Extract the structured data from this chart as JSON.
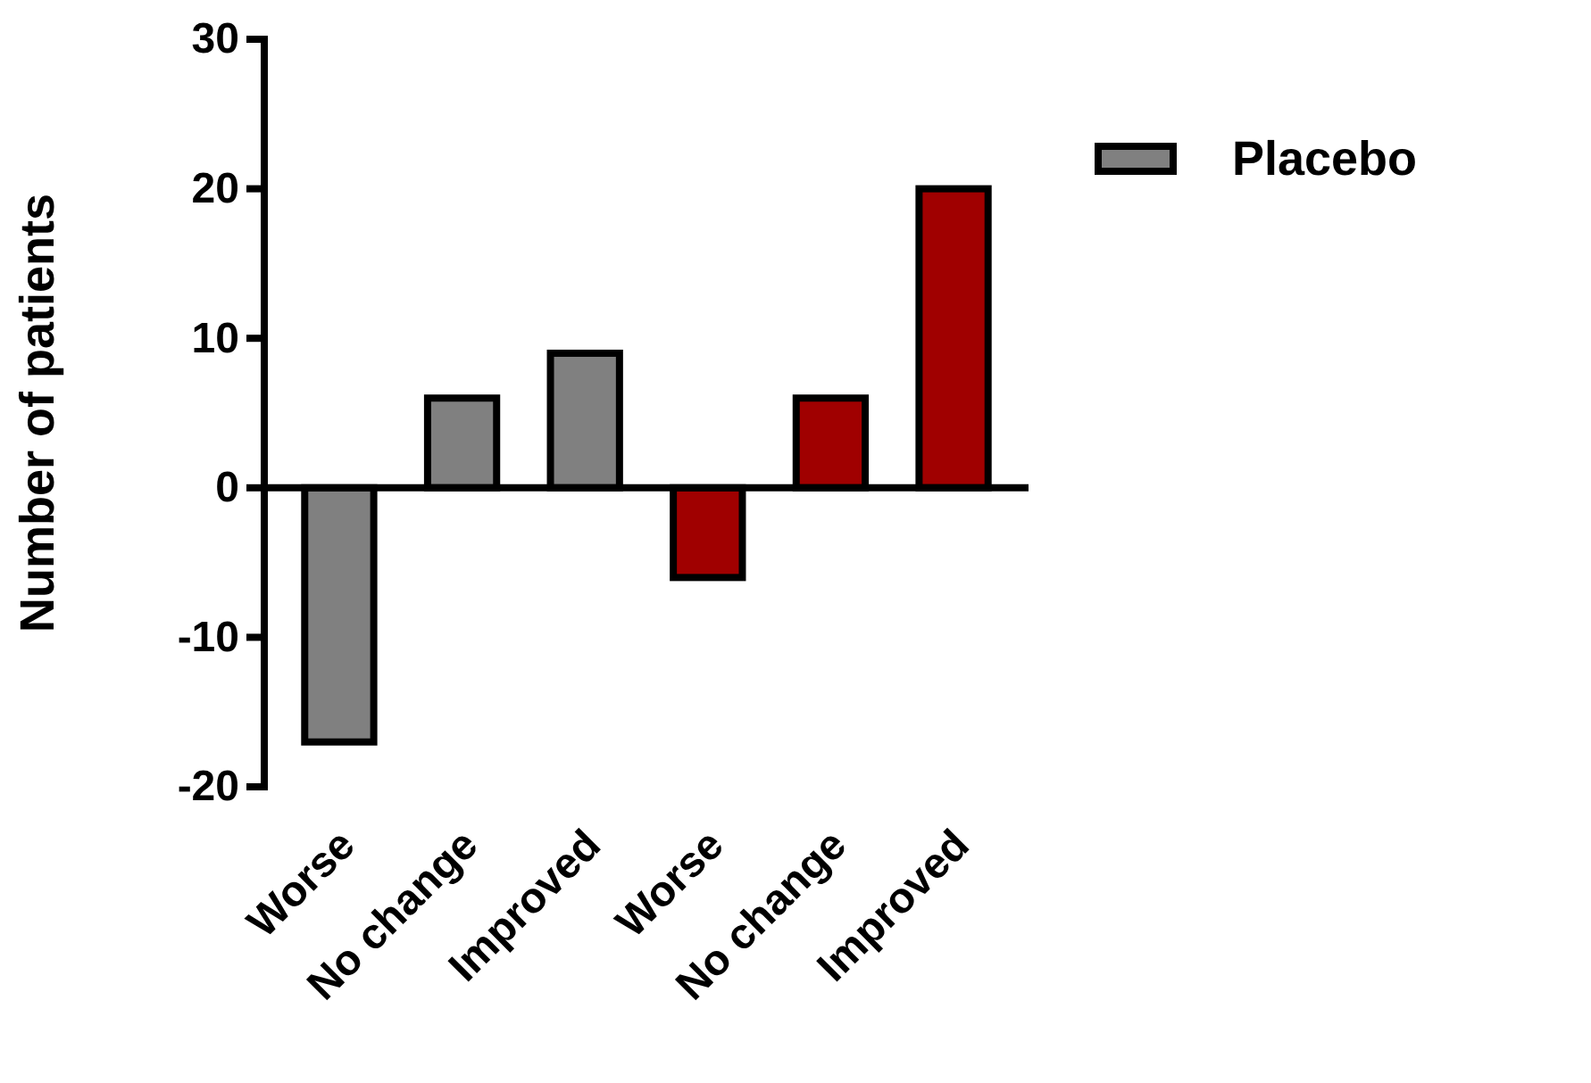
{
  "chart_data": {
    "type": "bar",
    "ylabel": "Number of patients",
    "categories": [
      "Worse",
      "No change",
      "Improved",
      "Worse",
      "No change",
      "Improved"
    ],
    "series": [
      {
        "name": "Placebo",
        "color": "#808080",
        "values": [
          -17,
          6,
          9,
          null,
          null,
          null
        ]
      },
      {
        "color": "#a00000",
        "values": [
          null,
          null,
          null,
          -6,
          6,
          20
        ]
      }
    ],
    "ylim": [
      -20,
      30
    ],
    "yticks": [
      -20,
      -10,
      0,
      10,
      20,
      30
    ],
    "legend": "top right"
  }
}
